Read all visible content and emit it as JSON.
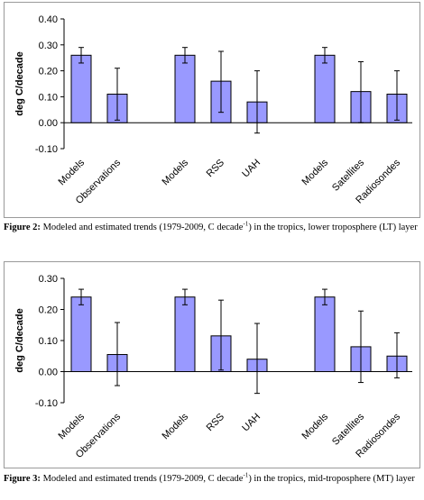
{
  "chart_data": [
    {
      "type": "bar",
      "ylabel": "deg C/decade",
      "ylim": [
        -0.1,
        0.4
      ],
      "yticks": [
        "-0.10",
        "0.00",
        "0.10",
        "0.20",
        "0.30",
        "0.40"
      ],
      "categories": [
        "Models",
        "Observations",
        "Models",
        "RSS",
        "UAH",
        "Models",
        "Satellites",
        "Radiosondes"
      ],
      "groups": [
        [
          0,
          1
        ],
        [
          2,
          3,
          4
        ],
        [
          5,
          6,
          7
        ]
      ],
      "values": [
        0.26,
        0.11,
        0.26,
        0.16,
        0.08,
        0.26,
        0.12,
        0.11
      ],
      "error_low": [
        0.23,
        0.01,
        0.23,
        0.04,
        -0.04,
        0.23,
        0.0,
        0.01
      ],
      "error_high": [
        0.29,
        0.21,
        0.29,
        0.275,
        0.2,
        0.29,
        0.235,
        0.2
      ],
      "bar_color": "#9999ff",
      "grid": false,
      "caption": {
        "label": "Figure 2:",
        "text_before": " Modeled and estimated trends (1979-2009, C decade",
        "superscript": "-1",
        "text_after": ") in the tropics, lower troposphere (LT) layer"
      }
    },
    {
      "type": "bar",
      "ylabel": "deg C/decade",
      "ylim": [
        -0.1,
        0.3
      ],
      "yticks": [
        "-0.10",
        "0.00",
        "0.10",
        "0.20",
        "0.30"
      ],
      "categories": [
        "Models",
        "Observations",
        "Models",
        "RSS",
        "UAH",
        "Models",
        "Satellites",
        "Radiosondes"
      ],
      "groups": [
        [
          0,
          1
        ],
        [
          2,
          3,
          4
        ],
        [
          5,
          6,
          7
        ]
      ],
      "values": [
        0.24,
        0.055,
        0.24,
        0.115,
        0.04,
        0.24,
        0.08,
        0.05
      ],
      "error_low": [
        0.215,
        -0.045,
        0.215,
        0.005,
        -0.07,
        0.215,
        -0.035,
        -0.02
      ],
      "error_high": [
        0.265,
        0.158,
        0.265,
        0.23,
        0.155,
        0.265,
        0.195,
        0.125
      ],
      "bar_color": "#9999ff",
      "grid": false,
      "caption": {
        "label": "Figure 3:",
        "text_before": " Modeled and estimated trends (1979-2009, C decade",
        "superscript": "-1",
        "text_after": ") in the tropics, mid-troposphere (MT) layer"
      }
    }
  ]
}
